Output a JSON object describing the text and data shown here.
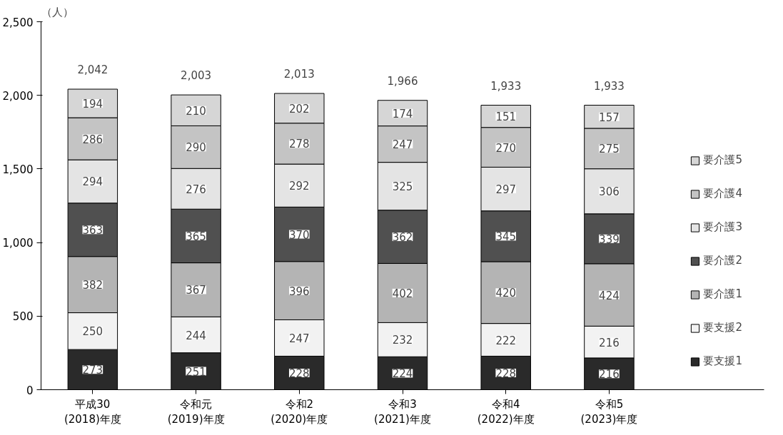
{
  "chart_data": {
    "type": "bar",
    "stacked": true,
    "ylabel": "（人）",
    "categories": [
      "平成30\n(2018)年度",
      "令和元\n(2019)年度",
      "令和2\n(2020)年度",
      "令和3\n(2021)年度",
      "令和4\n(2022)年度",
      "令和5\n(2023)年度"
    ],
    "series": [
      {
        "name": "要支援1",
        "color": "#2a2a2a",
        "values": [
          273,
          251,
          228,
          224,
          228,
          216
        ]
      },
      {
        "name": "要支援2",
        "color": "#f2f2f2",
        "values": [
          250,
          244,
          247,
          232,
          222,
          216
        ]
      },
      {
        "name": "要介護1",
        "color": "#b4b4b4",
        "values": [
          382,
          367,
          396,
          402,
          420,
          424
        ]
      },
      {
        "name": "要介護2",
        "color": "#505050",
        "values": [
          363,
          365,
          370,
          362,
          345,
          339
        ]
      },
      {
        "name": "要介護3",
        "color": "#e4e4e4",
        "values": [
          294,
          276,
          292,
          325,
          297,
          306
        ]
      },
      {
        "name": "要介護4",
        "color": "#c4c4c4",
        "values": [
          286,
          290,
          278,
          247,
          270,
          275
        ]
      },
      {
        "name": "要介護5",
        "color": "#d6d6d6",
        "values": [
          194,
          210,
          202,
          174,
          151,
          157
        ]
      }
    ],
    "totals": [
      "2,042",
      "2,003",
      "2,013",
      "1,966",
      "1,933",
      "1,933"
    ],
    "ylim": [
      0,
      2500
    ],
    "yticks": [
      0,
      {
        "value": 500,
        "label": "500"
      },
      {
        "value": 1000,
        "label": "1,000"
      },
      {
        "value": 1500,
        "label": "1,500"
      },
      {
        "value": 2000,
        "label": "2,000"
      },
      {
        "value": 2500,
        "label": "2,500"
      }
    ],
    "data_labels": true,
    "grid": false,
    "legend": "right"
  }
}
